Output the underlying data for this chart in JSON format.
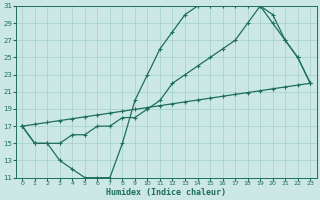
{
  "bg_color": "#cce8e5",
  "grid_color": "#aad4cf",
  "line_color": "#1e6e5e",
  "xlabel": "Humidex (Indice chaleur)",
  "xlim": [
    -0.5,
    23.5
  ],
  "ylim": [
    11,
    31
  ],
  "xticks": [
    0,
    1,
    2,
    3,
    4,
    5,
    6,
    7,
    8,
    9,
    10,
    11,
    12,
    13,
    14,
    15,
    16,
    17,
    18,
    19,
    20,
    21,
    22,
    23
  ],
  "yticks": [
    11,
    13,
    15,
    17,
    19,
    21,
    23,
    25,
    27,
    29,
    31
  ],
  "curve1_x": [
    0,
    1,
    2,
    3,
    4,
    5,
    6,
    7,
    8,
    9,
    10,
    11,
    12,
    13,
    14,
    15,
    16,
    17,
    18,
    19,
    20,
    21,
    22,
    23
  ],
  "curve1_y": [
    17,
    15,
    15,
    13,
    12,
    11,
    11,
    11,
    15,
    20,
    23,
    26,
    28,
    30,
    31,
    31,
    31,
    31,
    31,
    31,
    30,
    27,
    25,
    22
  ],
  "curve2_x": [
    0,
    1,
    2,
    3,
    4,
    5,
    6,
    7,
    8,
    9,
    10,
    11,
    12,
    13,
    14,
    15,
    16,
    17,
    18,
    19,
    20,
    21,
    22,
    23
  ],
  "curve2_y": [
    17,
    15,
    15,
    15,
    16,
    16,
    17,
    17,
    18,
    18,
    19,
    20,
    22,
    23,
    24,
    25,
    26,
    27,
    29,
    31,
    29,
    27,
    25,
    22
  ],
  "curve3_x": [
    0,
    1,
    2,
    3,
    4,
    5,
    6,
    7,
    8,
    9,
    10,
    11,
    12,
    13,
    14,
    15,
    16,
    17,
    18,
    19,
    20,
    21,
    22,
    23
  ],
  "curve3_y": [
    17,
    17.22,
    17.43,
    17.65,
    17.87,
    18.09,
    18.3,
    18.52,
    18.74,
    18.96,
    19.17,
    19.39,
    19.61,
    19.83,
    20.04,
    20.26,
    20.48,
    20.7,
    20.91,
    21.13,
    21.35,
    21.57,
    21.78,
    22.0
  ]
}
